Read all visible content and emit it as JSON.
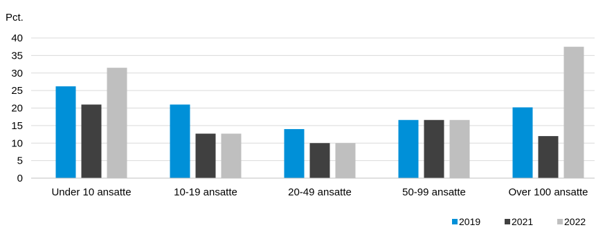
{
  "chart_data": {
    "type": "bar",
    "ylabel": "Pct.",
    "ylim": [
      0,
      40
    ],
    "yticks": [
      "0",
      "5",
      "10",
      "15",
      "20",
      "25",
      "30",
      "35",
      "40"
    ],
    "categories": [
      "Under 10 ansatte",
      "10-19 ansatte",
      "20-49 ansatte",
      "50-99 ansatte",
      "Over 100 ansatte"
    ],
    "series": [
      {
        "name": "2019",
        "color": "#0090d8",
        "values": [
          26.2,
          21.0,
          14.0,
          16.6,
          20.2
        ]
      },
      {
        "name": "2021",
        "color": "#404040",
        "values": [
          21.0,
          12.7,
          10.0,
          16.6,
          12.0
        ]
      },
      {
        "name": "2022",
        "color": "#bfbfbf",
        "values": [
          31.5,
          12.7,
          10.0,
          16.6,
          37.5
        ]
      }
    ],
    "grid": true,
    "legend_position": "bottom-right"
  }
}
